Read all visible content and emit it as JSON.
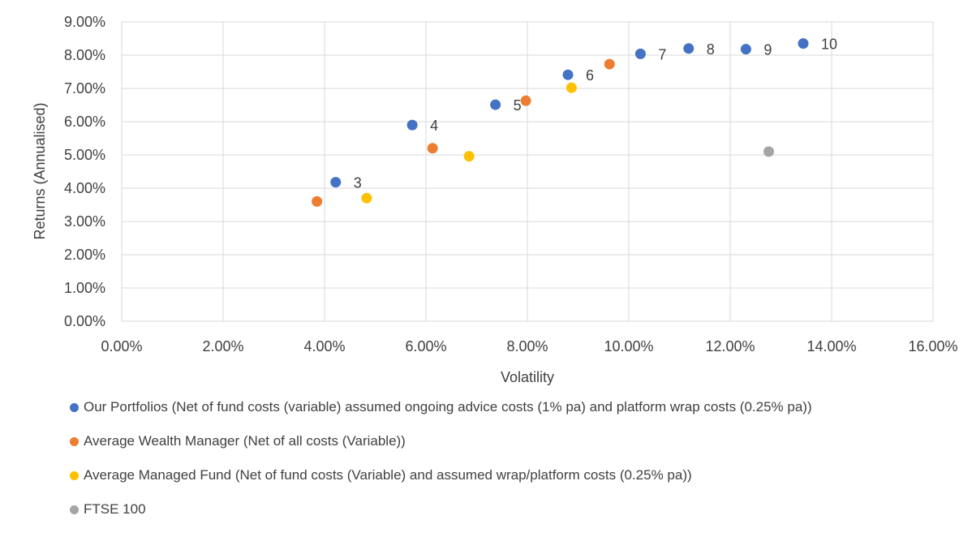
{
  "chart_data": {
    "type": "scatter",
    "xlabel": "Volatility",
    "ylabel": "Returns (Annualised)",
    "xlim": [
      0,
      16
    ],
    "ylim": [
      0,
      9
    ],
    "x_ticks": [
      0,
      2,
      4,
      6,
      8,
      10,
      12,
      14,
      16
    ],
    "y_ticks": [
      0,
      1,
      2,
      3,
      4,
      5,
      6,
      7,
      8,
      9
    ],
    "x_tick_labels": [
      "0.00%",
      "2.00%",
      "4.00%",
      "6.00%",
      "8.00%",
      "10.00%",
      "12.00%",
      "14.00%",
      "16.00%"
    ],
    "y_tick_labels": [
      "0.00%",
      "1.00%",
      "2.00%",
      "3.00%",
      "4.00%",
      "5.00%",
      "6.00%",
      "7.00%",
      "8.00%",
      "9.00%"
    ],
    "grid": true,
    "legend_position": "bottom",
    "series": [
      {
        "name": "Our Portfolios (Net of fund costs (variable) assumed ongoing advice costs (1% pa) and platform wrap costs (0.25% pa))",
        "color": "#4472c4",
        "points": [
          {
            "x": 4.22,
            "y": 4.18,
            "label": "3"
          },
          {
            "x": 5.73,
            "y": 5.9,
            "label": "4"
          },
          {
            "x": 7.37,
            "y": 6.51,
            "label": "5"
          },
          {
            "x": 8.8,
            "y": 7.41,
            "label": "6"
          },
          {
            "x": 10.23,
            "y": 8.04,
            "label": "7"
          },
          {
            "x": 11.18,
            "y": 8.2,
            "label": "8"
          },
          {
            "x": 12.31,
            "y": 8.18,
            "label": "9"
          },
          {
            "x": 13.44,
            "y": 8.35,
            "label": "10"
          }
        ]
      },
      {
        "name": "Average Wealth Manager (Net of all costs (Variable))",
        "color": "#ed7d31",
        "points": [
          {
            "x": 3.85,
            "y": 3.6
          },
          {
            "x": 6.13,
            "y": 5.2
          },
          {
            "x": 7.97,
            "y": 6.63
          },
          {
            "x": 9.62,
            "y": 7.73
          }
        ]
      },
      {
        "name": "Average Managed Fund (Net of fund costs (Variable) and assumed wrap/platform costs (0.25% pa))",
        "color": "#ffc000",
        "points": [
          {
            "x": 4.83,
            "y": 3.7
          },
          {
            "x": 6.85,
            "y": 4.96
          },
          {
            "x": 8.87,
            "y": 7.02
          }
        ]
      },
      {
        "name": "FTSE 100",
        "color": "#a5a5a5",
        "points": [
          {
            "x": 12.76,
            "y": 5.1
          }
        ]
      }
    ]
  }
}
